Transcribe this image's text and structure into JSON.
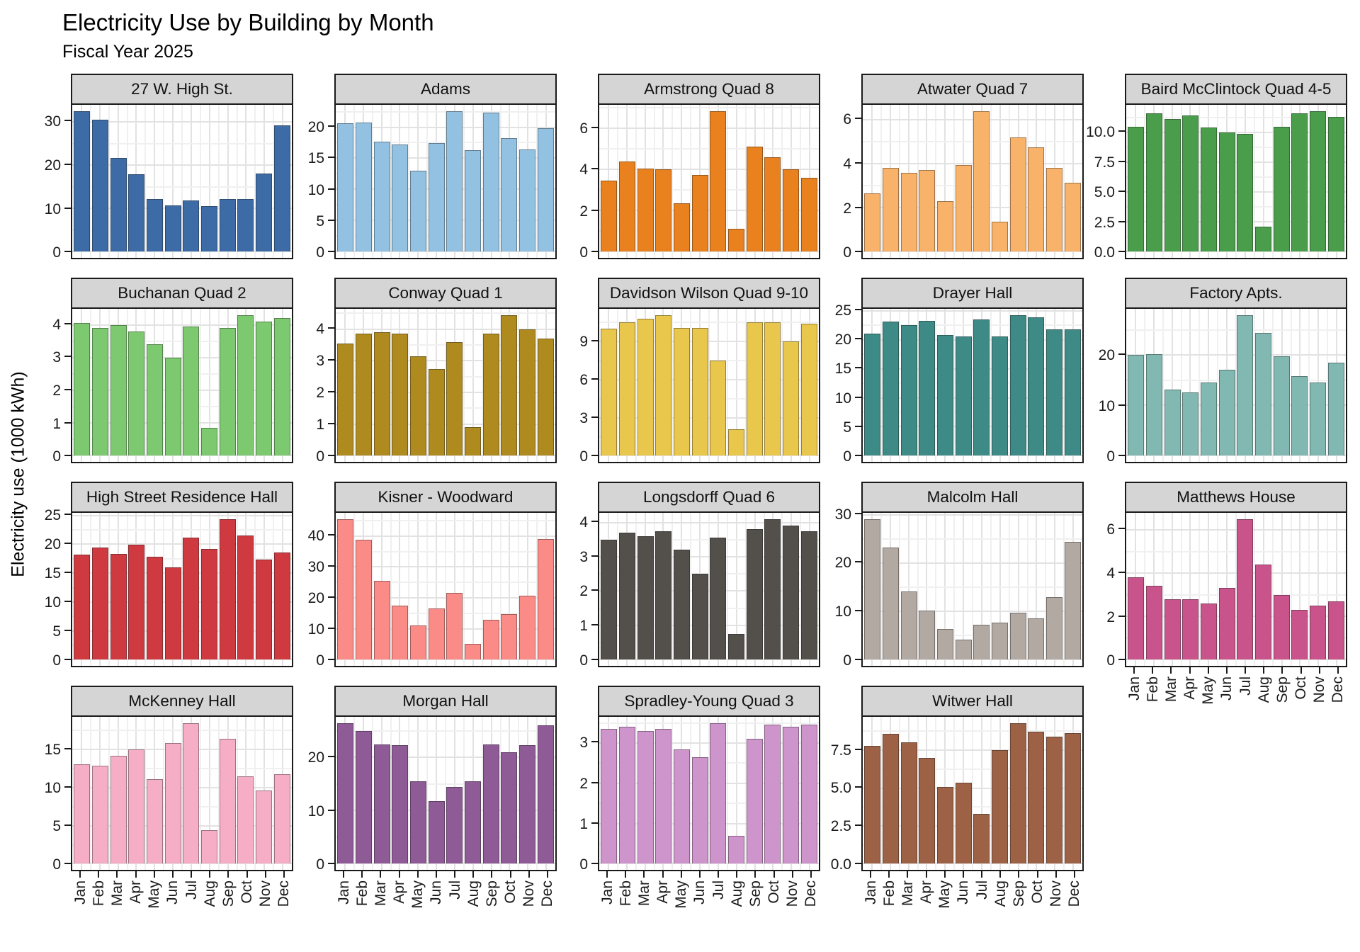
{
  "header": {
    "title": "Electricity Use by Building by Month",
    "subtitle": "Fiscal Year 2025"
  },
  "chart_data": {
    "type": "bar",
    "title": "Electricity Use by Building by Month",
    "subtitle": "Fiscal Year 2025",
    "ylabel": "Electricity use (1000 kWh)",
    "xlabel": "",
    "legend": "none",
    "grid": "major+minor",
    "layout": {
      "rows": 4,
      "cols": 5,
      "empty_last_cell": true
    },
    "categories": [
      "Jan",
      "Feb",
      "Mar",
      "Apr",
      "May",
      "Jun",
      "Jul",
      "Aug",
      "Sep",
      "Oct",
      "Nov",
      "Dec"
    ],
    "facets": [
      {
        "name": "27 W. High St.",
        "color": "#3d6ba5",
        "yticks": [
          0,
          10,
          20,
          30
        ],
        "ytick_labels": [
          "0",
          "10",
          "20",
          "30"
        ],
        "show_x": false,
        "values": [
          32.5,
          30.5,
          21.6,
          17.9,
          12.1,
          10.7,
          11.9,
          10.5,
          12.2,
          12.2,
          18.0,
          29.2
        ]
      },
      {
        "name": "Adams",
        "color": "#93c1e1",
        "yticks": [
          0,
          5,
          10,
          15,
          20
        ],
        "ytick_labels": [
          "0",
          "5",
          "10",
          "15",
          "20"
        ],
        "show_x": false,
        "values": [
          20.6,
          20.7,
          17.7,
          17.2,
          13.0,
          17.5,
          22.6,
          16.3,
          22.3,
          18.2,
          16.4,
          19.8
        ]
      },
      {
        "name": "Armstrong Quad 8",
        "color": "#e8811e",
        "yticks": [
          0,
          2,
          4,
          6
        ],
        "ytick_labels": [
          "0",
          "2",
          "4",
          "6"
        ],
        "show_x": false,
        "values": [
          3.45,
          4.4,
          4.05,
          4.0,
          2.35,
          3.75,
          6.85,
          1.1,
          5.1,
          4.6,
          4.0,
          3.6
        ]
      },
      {
        "name": "Atwater Quad 7",
        "color": "#f9b269",
        "yticks": [
          0,
          2,
          4,
          6
        ],
        "ytick_labels": [
          "0",
          "2",
          "4",
          "6"
        ],
        "show_x": false,
        "values": [
          2.65,
          3.8,
          3.6,
          3.7,
          2.3,
          3.95,
          6.4,
          1.35,
          5.2,
          4.75,
          3.8,
          3.15
        ]
      },
      {
        "name": "Baird McClintock Quad 4-5",
        "color": "#4a9e4b",
        "yticks": [
          0,
          2.5,
          5,
          7.5,
          10
        ],
        "ytick_labels": [
          "0.0",
          "2.5",
          "5.0",
          "7.5",
          "10.0"
        ],
        "show_x": false,
        "values": [
          10.5,
          11.6,
          11.1,
          11.4,
          10.4,
          10.0,
          9.9,
          2.1,
          10.5,
          11.6,
          11.8,
          11.3
        ]
      },
      {
        "name": "Buchanan Quad 2",
        "color": "#7cc96f",
        "yticks": [
          0,
          1,
          2,
          3,
          4
        ],
        "ytick_labels": [
          "0",
          "1",
          "2",
          "3",
          "4"
        ],
        "show_x": false,
        "values": [
          4.05,
          3.9,
          4.0,
          3.8,
          3.4,
          3.0,
          3.95,
          0.85,
          3.9,
          4.3,
          4.1,
          4.2
        ]
      },
      {
        "name": "Conway Quad 1",
        "color": "#ae8a1f",
        "yticks": [
          0,
          1,
          2,
          3,
          4
        ],
        "ytick_labels": [
          "0",
          "1",
          "2",
          "3",
          "4"
        ],
        "show_x": false,
        "values": [
          3.55,
          3.85,
          3.9,
          3.85,
          3.15,
          2.75,
          3.6,
          0.9,
          3.85,
          4.45,
          4.0,
          3.7
        ]
      },
      {
        "name": "Davidson Wilson Quad 9-10",
        "color": "#e9c64c",
        "yticks": [
          0,
          3,
          6,
          9
        ],
        "ytick_labels": [
          "0",
          "3",
          "6",
          "9"
        ],
        "show_x": false,
        "values": [
          10.0,
          10.5,
          10.8,
          11.1,
          10.1,
          10.1,
          7.5,
          2.1,
          10.5,
          10.5,
          9.0,
          10.4
        ]
      },
      {
        "name": "Drayer Hall",
        "color": "#3d8a86",
        "yticks": [
          0,
          5,
          10,
          15,
          20,
          25
        ],
        "ytick_labels": [
          "0",
          "5",
          "10",
          "15",
          "20",
          "25"
        ],
        "show_x": false,
        "values": [
          21.1,
          23.1,
          22.5,
          23.3,
          20.8,
          20.6,
          23.5,
          20.6,
          24.3,
          23.9,
          21.8,
          21.8
        ]
      },
      {
        "name": "Factory Apts.",
        "color": "#82b8b2",
        "yticks": [
          0,
          10,
          20
        ],
        "ytick_labels": [
          "0",
          "10",
          "20"
        ],
        "show_x": false,
        "values": [
          20.0,
          20.2,
          13.1,
          12.6,
          14.5,
          17.1,
          28.0,
          24.4,
          19.8,
          15.9,
          14.5,
          18.5
        ]
      },
      {
        "name": "High Street Residence Hall",
        "color": "#cf3a41",
        "yticks": [
          0,
          5,
          10,
          15,
          20,
          25
        ],
        "ytick_labels": [
          "0",
          "5",
          "10",
          "15",
          "20",
          "25"
        ],
        "show_x": false,
        "values": [
          18.2,
          19.4,
          18.3,
          19.9,
          17.8,
          16.0,
          21.2,
          19.2,
          24.4,
          21.5,
          17.3,
          18.6
        ]
      },
      {
        "name": "Kisner - Woodward",
        "color": "#fb8b87",
        "yticks": [
          0,
          10,
          20,
          30,
          40
        ],
        "ytick_labels": [
          "0",
          "10",
          "20",
          "30",
          "40"
        ],
        "show_x": false,
        "values": [
          45.5,
          38.8,
          25.5,
          17.6,
          11.1,
          16.5,
          21.7,
          5.1,
          12.9,
          14.7,
          20.7,
          39.0
        ]
      },
      {
        "name": "Longsdorff Quad 6",
        "color": "#53504b",
        "yticks": [
          0,
          1,
          2,
          3,
          4
        ],
        "ytick_labels": [
          "0",
          "1",
          "2",
          "3",
          "4"
        ],
        "show_x": false,
        "values": [
          3.5,
          3.7,
          3.6,
          3.75,
          3.2,
          2.5,
          3.55,
          0.75,
          3.8,
          4.1,
          3.9,
          3.75
        ]
      },
      {
        "name": "Malcolm Hall",
        "color": "#b3a9a3",
        "yticks": [
          0,
          10,
          20,
          30
        ],
        "ytick_labels": [
          "0",
          "10",
          "20",
          "30"
        ],
        "show_x": false,
        "values": [
          29.1,
          23.2,
          14.1,
          10.1,
          6.4,
          4.2,
          7.3,
          7.7,
          9.7,
          8.5,
          13.0,
          24.3
        ]
      },
      {
        "name": "Matthews House",
        "color": "#c9548c",
        "yticks": [
          0,
          2,
          4,
          6
        ],
        "ytick_labels": [
          "0",
          "2",
          "4",
          "6"
        ],
        "show_x": true,
        "values": [
          3.8,
          3.4,
          2.8,
          2.8,
          2.6,
          3.3,
          6.5,
          4.4,
          3.0,
          2.3,
          2.5,
          2.7
        ]
      },
      {
        "name": "McKenney Hall",
        "color": "#f6aec6",
        "yticks": [
          0,
          5,
          10,
          15
        ],
        "ytick_labels": [
          "0",
          "5",
          "10",
          "15"
        ],
        "show_x": true,
        "values": [
          13.1,
          12.9,
          14.2,
          15.0,
          11.1,
          15.9,
          18.5,
          4.4,
          16.4,
          11.5,
          9.6,
          11.8
        ]
      },
      {
        "name": "Morgan Hall",
        "color": "#8e5b96",
        "yticks": [
          0,
          10,
          20
        ],
        "ytick_labels": [
          "0",
          "10",
          "20"
        ],
        "show_x": true,
        "values": [
          26.5,
          25.0,
          22.5,
          22.3,
          15.5,
          11.8,
          14.5,
          15.5,
          22.5,
          21.0,
          22.3,
          26.0
        ]
      },
      {
        "name": "Spradley-Young  Quad 3",
        "color": "#ce94cc",
        "yticks": [
          0,
          1,
          2,
          3
        ],
        "ytick_labels": [
          "0",
          "1",
          "2",
          "3"
        ],
        "show_x": true,
        "values": [
          3.35,
          3.4,
          3.3,
          3.35,
          2.85,
          2.65,
          3.5,
          0.7,
          3.1,
          3.45,
          3.4,
          3.45
        ]
      },
      {
        "name": "Witwer Hall",
        "color": "#9d6245",
        "yticks": [
          0,
          2.5,
          5,
          7.5
        ],
        "ytick_labels": [
          "0.0",
          "2.5",
          "5.0",
          "7.5"
        ],
        "show_x": true,
        "values": [
          7.8,
          8.6,
          8.0,
          7.0,
          5.05,
          5.35,
          3.3,
          7.5,
          9.3,
          8.7,
          8.4,
          8.65
        ]
      }
    ],
    "style": {
      "strip_bg": "#d5d5d5",
      "panel_border": "#1a1a1a",
      "grid_major": "#e2e2e2",
      "grid_minor": "#f0f0f0",
      "axis_text": "#1a1a1a"
    }
  }
}
